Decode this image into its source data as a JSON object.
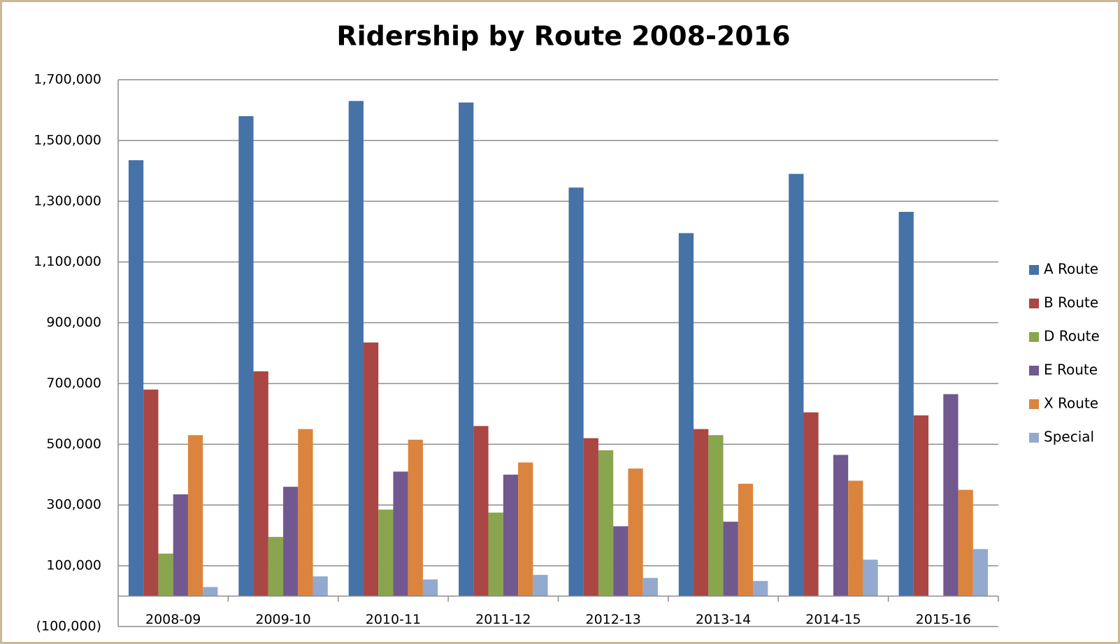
{
  "chart_data": {
    "type": "bar",
    "title": "Ridership by Route 2008-2016",
    "categories": [
      "2008-09",
      "2009-10",
      "2010-11",
      "2011-12",
      "2012-13",
      "2013-14",
      "2014-15",
      "2015-16"
    ],
    "series": [
      {
        "name": "A Route",
        "color": "#4572a7",
        "values": [
          1435000,
          1580000,
          1630000,
          1625000,
          1345000,
          1195000,
          1390000,
          1265000
        ]
      },
      {
        "name": "B Route",
        "color": "#aa4643",
        "values": [
          680000,
          740000,
          835000,
          560000,
          520000,
          550000,
          605000,
          595000
        ]
      },
      {
        "name": "D Route",
        "color": "#89a54e",
        "values": [
          140000,
          195000,
          285000,
          275000,
          480000,
          530000,
          0,
          0
        ]
      },
      {
        "name": "E Route",
        "color": "#71588f",
        "values": [
          335000,
          360000,
          410000,
          400000,
          230000,
          245000,
          465000,
          665000
        ]
      },
      {
        "name": "X Route",
        "color": "#db843d",
        "values": [
          530000,
          550000,
          515000,
          440000,
          420000,
          370000,
          380000,
          350000
        ]
      },
      {
        "name": "Special",
        "color": "#93a9cf",
        "values": [
          30000,
          65000,
          55000,
          70000,
          60000,
          50000,
          120000,
          155000
        ]
      }
    ],
    "ylim": [
      -100000,
      1700000
    ],
    "yticks": [
      {
        "value": -100000,
        "label": "(100,000)"
      },
      {
        "value": 100000,
        "label": "100,000"
      },
      {
        "value": 300000,
        "label": "300,000"
      },
      {
        "value": 500000,
        "label": "500,000"
      },
      {
        "value": 700000,
        "label": "700,000"
      },
      {
        "value": 900000,
        "label": "900,000"
      },
      {
        "value": 1100000,
        "label": "1,100,000"
      },
      {
        "value": 1300000,
        "label": "1,300,000"
      },
      {
        "value": 1500000,
        "label": "1,500,000"
      },
      {
        "value": 1700000,
        "label": "1,700,000"
      }
    ],
    "grid": true,
    "legend": "right"
  }
}
